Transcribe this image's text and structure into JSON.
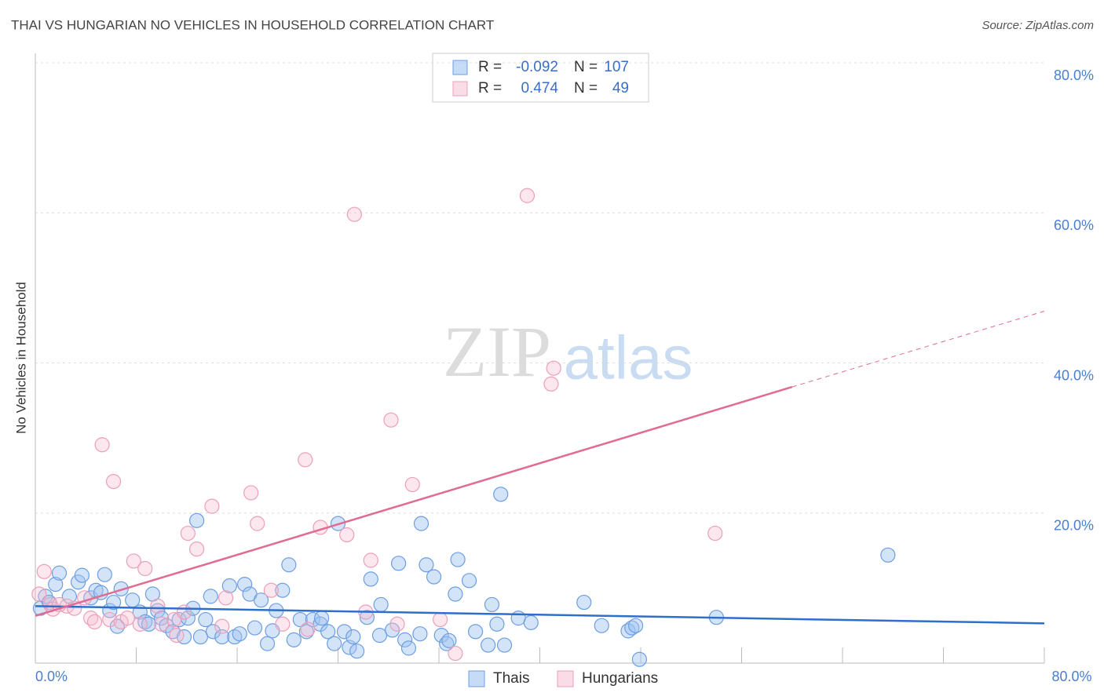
{
  "chart_data": {
    "type": "scatter",
    "title": "THAI VS HUNGARIAN NO VEHICLES IN HOUSEHOLD CORRELATION CHART",
    "source": "Source: ZipAtlas.com",
    "watermark": [
      "ZIP",
      "atlas"
    ],
    "y_label": "No Vehicles in Household",
    "xlim": [
      0,
      80
    ],
    "ylim": [
      0,
      80
    ],
    "xticks": [
      {
        "value": 0,
        "label": "0.0%"
      },
      {
        "value": 80,
        "label": "80.0%"
      }
    ],
    "xminor": [
      8,
      16,
      24,
      32,
      40,
      48,
      56,
      64,
      72
    ],
    "yticks": [
      {
        "value": 20,
        "label": "20.0%"
      },
      {
        "value": 40,
        "label": "40.0%"
      },
      {
        "value": 60,
        "label": "60.0%"
      },
      {
        "value": 80,
        "label": "80.0%"
      }
    ],
    "grid": true,
    "r_label": "R =",
    "n_label": "N =",
    "series": [
      {
        "name": "Thais",
        "color": "#6d9ee0",
        "line_color": "#2f6fcc",
        "r": -0.092,
        "n": 107,
        "x": [
          0.4,
          0.8,
          1.1,
          1.6,
          1.9,
          2.7,
          3.4,
          3.7,
          4.4,
          4.8,
          5.2,
          5.5,
          5.9,
          6.2,
          6.5,
          6.8,
          7.7,
          8.3,
          8.7,
          9.0,
          9.3,
          9.7,
          10.0,
          10.4,
          10.9,
          11.4,
          11.8,
          12.1,
          12.5,
          12.8,
          13.1,
          13.5,
          13.9,
          14.1,
          14.8,
          15.4,
          15.8,
          16.2,
          16.6,
          17.0,
          17.4,
          17.9,
          18.4,
          18.8,
          19.1,
          19.6,
          20.1,
          20.5,
          21.0,
          21.5,
          22.0,
          22.6,
          22.7,
          23.2,
          23.7,
          24.0,
          24.5,
          24.9,
          25.2,
          25.5,
          26.3,
          26.6,
          27.3,
          27.4,
          28.3,
          28.8,
          29.3,
          29.6,
          30.5,
          30.6,
          31.0,
          31.6,
          32.2,
          32.6,
          32.8,
          33.3,
          33.5,
          34.4,
          34.9,
          35.9,
          36.2,
          36.6,
          36.9,
          37.2,
          38.3,
          39.3,
          43.5,
          44.9,
          47.0,
          47.3,
          47.6,
          47.9,
          54.0,
          67.6
        ],
        "values": [
          7.3,
          8.9,
          8.1,
          10.5,
          12.0,
          8.9,
          10.8,
          11.7,
          8.7,
          9.7,
          9.4,
          11.8,
          7.0,
          8.1,
          4.9,
          9.9,
          8.4,
          6.8,
          5.5,
          5.2,
          9.2,
          7.0,
          6.0,
          5.0,
          4.2,
          5.8,
          3.5,
          6.0,
          7.3,
          19.0,
          3.5,
          5.8,
          8.9,
          4.2,
          3.5,
          10.3,
          3.5,
          3.9,
          10.5,
          9.2,
          4.7,
          8.4,
          2.6,
          4.3,
          7.0,
          9.7,
          13.1,
          3.1,
          5.8,
          4.2,
          5.8,
          5.2,
          6.0,
          4.2,
          2.6,
          18.6,
          4.2,
          2.1,
          3.5,
          1.6,
          6.1,
          11.2,
          3.7,
          7.8,
          4.4,
          13.3,
          3.1,
          2.0,
          3.9,
          18.6,
          13.1,
          11.5,
          3.7,
          2.6,
          3.0,
          9.2,
          13.8,
          11.0,
          4.2,
          2.4,
          7.8,
          5.2,
          22.5,
          2.4,
          6.0,
          5.4,
          8.1,
          5.0,
          4.3,
          4.7,
          5.0,
          0.5,
          6.1,
          14.4
        ],
        "trend": {
          "x": [
            0,
            80
          ],
          "y": [
            7.6,
            5.3
          ]
        }
      },
      {
        "name": "Hungarians",
        "color": "#eb9fb9",
        "line_color": "#e06b95",
        "r": 0.474,
        "n": 49,
        "x": [
          0.7,
          0.3,
          1.2,
          1.4,
          1.9,
          2.5,
          3.1,
          3.9,
          4.4,
          4.7,
          5.3,
          5.9,
          6.2,
          6.8,
          7.3,
          7.8,
          8.3,
          8.7,
          9.7,
          10.0,
          11.0,
          11.2,
          11.8,
          12.1,
          12.8,
          14.0,
          14.8,
          15.1,
          17.1,
          17.6,
          18.7,
          19.6,
          21.4,
          21.6,
          22.6,
          24.7,
          25.3,
          26.2,
          26.6,
          28.2,
          28.7,
          29.9,
          32.1,
          33.3,
          39.0,
          40.9,
          41.1,
          53.9
        ],
        "values": [
          12.2,
          9.2,
          7.8,
          7.2,
          7.8,
          7.6,
          7.3,
          8.7,
          6.0,
          5.5,
          29.1,
          5.8,
          24.2,
          5.5,
          6.0,
          13.6,
          5.2,
          12.6,
          7.6,
          5.2,
          5.8,
          3.7,
          6.8,
          17.3,
          15.2,
          20.9,
          4.9,
          8.7,
          22.7,
          18.6,
          9.7,
          5.2,
          27.1,
          4.5,
          18.1,
          17.1,
          59.8,
          6.8,
          13.7,
          32.4,
          5.2,
          23.8,
          5.8,
          1.3,
          62.3,
          37.2,
          39.3,
          17.3
        ],
        "trend": {
          "x": [
            0,
            60,
            80
          ],
          "y": [
            6.3,
            36.8,
            46.9
          ]
        }
      }
    ]
  }
}
